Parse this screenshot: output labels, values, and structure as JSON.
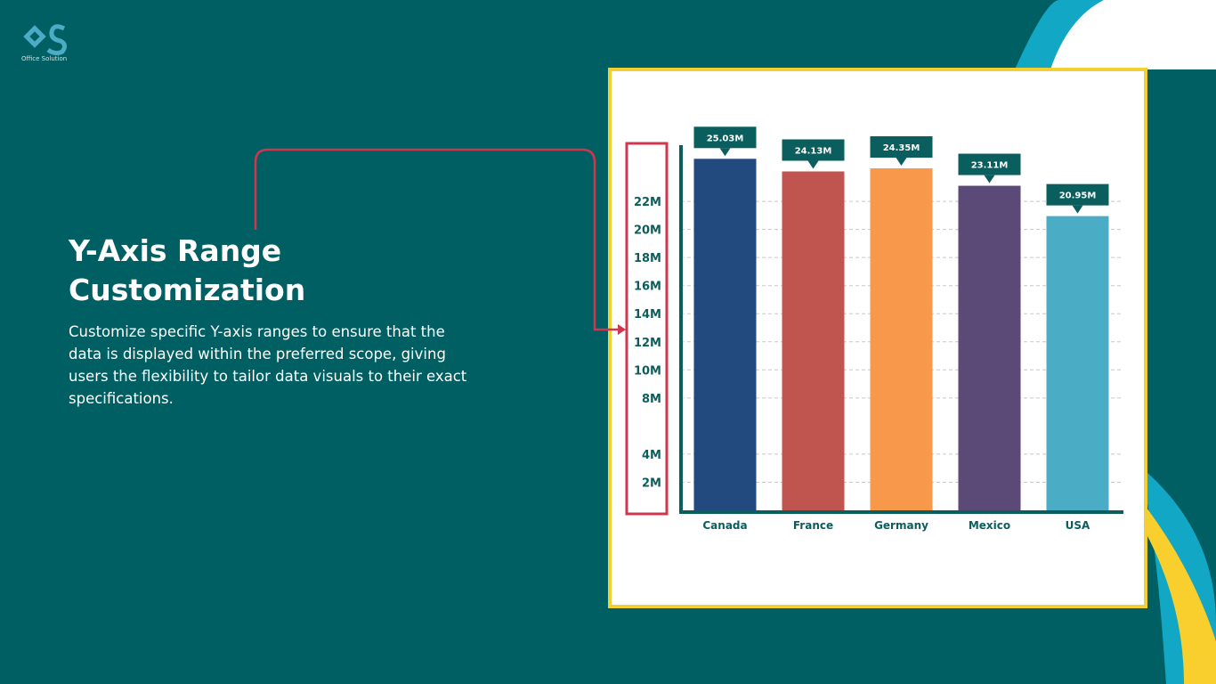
{
  "brand": "Office Solution",
  "heading": "Y-Axis Range Customization",
  "description": "Customize specific Y-axis ranges to ensure that the data is displayed within the preferred scope, giving users the flexibility to tailor data visuals to their exact specifications.",
  "chart_data": {
    "type": "bar",
    "categories": [
      "Canada",
      "France",
      "Germany",
      "Mexico",
      "USA"
    ],
    "values": [
      25030000,
      24130000,
      24350000,
      23110000,
      20950000
    ],
    "value_labels": [
      "25.03M",
      "24.13M",
      "24.35M",
      "23.11M",
      "20.95M"
    ],
    "colors": [
      "#234a7e",
      "#c0554f",
      "#f7984a",
      "#5b4a78",
      "#4bacc6"
    ],
    "ylim": [
      0,
      26000000
    ],
    "yticks": [
      {
        "value": 2000000,
        "label": "2M"
      },
      {
        "value": 4000000,
        "label": "4M"
      },
      {
        "value": 8000000,
        "label": "8M"
      },
      {
        "value": 10000000,
        "label": "10M"
      },
      {
        "value": 12000000,
        "label": "12M"
      },
      {
        "value": 14000000,
        "label": "14M"
      },
      {
        "value": 16000000,
        "label": "16M"
      },
      {
        "value": 18000000,
        "label": "18M"
      },
      {
        "value": 20000000,
        "label": "20M"
      },
      {
        "value": 22000000,
        "label": "22M"
      }
    ],
    "grid": true
  }
}
